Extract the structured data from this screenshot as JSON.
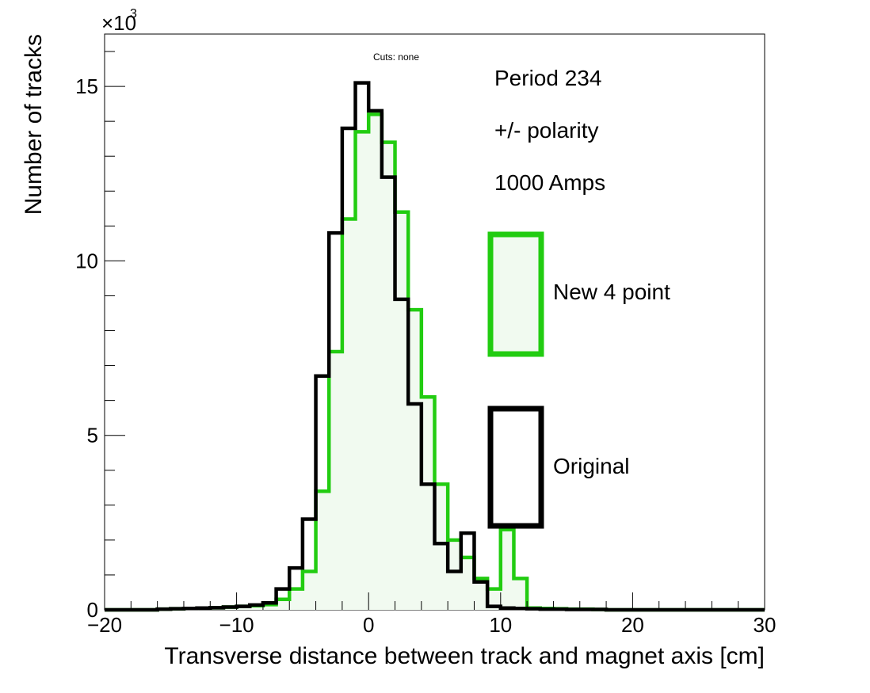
{
  "chart_data": {
    "type": "histogram",
    "title": "Cuts: none",
    "xlabel": "Transverse distance between track and magnet axis [cm]",
    "ylabel": "Number of tracks",
    "y_multiplier_label": "×10",
    "y_multiplier_exp": "3",
    "xlim": [
      -20,
      30
    ],
    "ylim": [
      0,
      16.5
    ],
    "x_ticks": [
      -20,
      -10,
      0,
      10,
      20,
      30
    ],
    "x_tick_labels": [
      "−20",
      "−10",
      "0",
      "10",
      "20",
      "30"
    ],
    "y_ticks": [
      0,
      5,
      10,
      15
    ],
    "y_tick_labels": [
      "0",
      "5",
      "10",
      "15"
    ],
    "bin_width": 1,
    "bin_start": -20,
    "annotations": [
      "Period 234",
      "+/- polarity",
      "1000 Amps"
    ],
    "grid": false,
    "legend": "right, inside plot",
    "series": [
      {
        "name": "New 4 point",
        "color": "#22cc11",
        "fill": "#f1faf0",
        "values": [
          0,
          0,
          0,
          0,
          0.02,
          0.03,
          0.04,
          0.05,
          0.06,
          0.08,
          0.1,
          0.12,
          0.15,
          0.3,
          0.6,
          1.1,
          3.4,
          7.4,
          11.2,
          13.7,
          14.2,
          13.4,
          11.4,
          8.6,
          6.1,
          3.6,
          2.0,
          1.5,
          0.9,
          0.6,
          2.3,
          0.9,
          0.05,
          0.04,
          0.03,
          0.02,
          0.02,
          0.01,
          0,
          0,
          0,
          0,
          0,
          0,
          0,
          0,
          0,
          0,
          0,
          0
        ]
      },
      {
        "name": "Original",
        "color": "#000000",
        "values": [
          0,
          0,
          0,
          0,
          0.02,
          0.03,
          0.04,
          0.05,
          0.06,
          0.08,
          0.1,
          0.14,
          0.2,
          0.6,
          1.2,
          2.6,
          6.7,
          10.8,
          13.8,
          15.1,
          14.3,
          12.4,
          8.9,
          5.9,
          3.6,
          1.9,
          1.1,
          2.2,
          0.8,
          0.1,
          0.05,
          0.04,
          0.03,
          0.02,
          0.02,
          0.01,
          0.01,
          0.01,
          0,
          0,
          0,
          0,
          0,
          0,
          0,
          0,
          0,
          0,
          0,
          0
        ]
      }
    ]
  }
}
